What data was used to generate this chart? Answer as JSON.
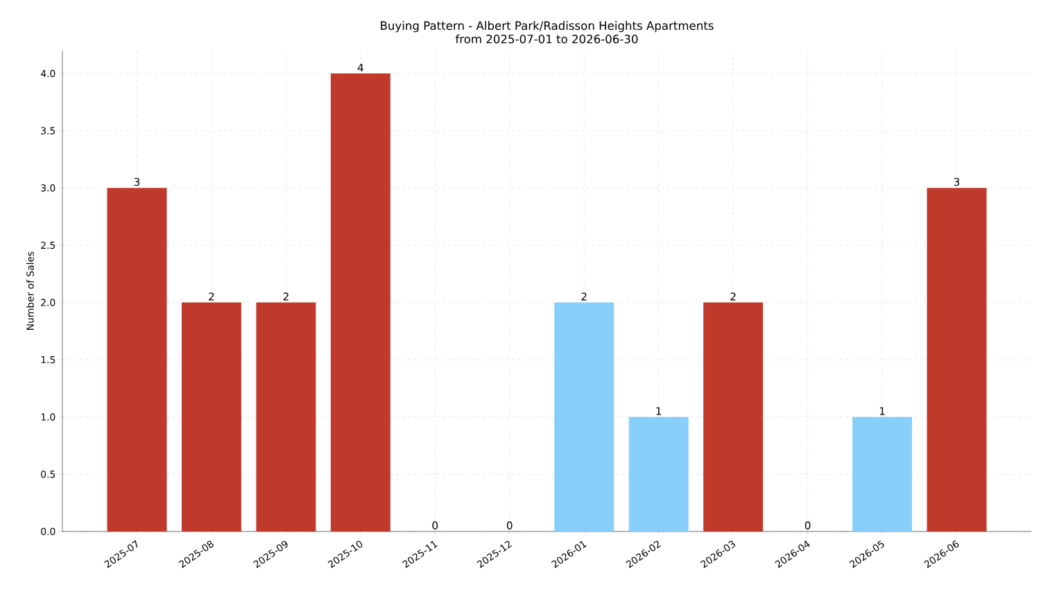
{
  "chart_data": {
    "type": "bar",
    "title": "Buying Pattern - Albert Park/Radisson Heights Apartments",
    "subtitle": "from 2025-07-01 to 2026-06-30",
    "ylabel": "Number of Sales",
    "categories": [
      "2025-07",
      "2025-08",
      "2025-09",
      "2025-10",
      "2025-11",
      "2025-12",
      "2026-01",
      "2026-02",
      "2026-03",
      "2026-04",
      "2026-05",
      "2026-06"
    ],
    "values": [
      3,
      2,
      2,
      4,
      0,
      0,
      2,
      1,
      2,
      0,
      1,
      3
    ],
    "colors": [
      "#c0392b",
      "#c0392b",
      "#c0392b",
      "#c0392b",
      "#c0392b",
      "#c0392b",
      "#87cefa",
      "#87cefa",
      "#c0392b",
      "#c0392b",
      "#87cefa",
      "#c0392b"
    ],
    "ylim": [
      0,
      4.2
    ],
    "yticks": [
      {
        "value": 0,
        "label": "0.0"
      },
      {
        "value": 0.5,
        "label": "0.5"
      },
      {
        "value": 1,
        "label": "1.0"
      },
      {
        "value": 1.5,
        "label": "1.5"
      },
      {
        "value": 2,
        "label": "2.0"
      },
      {
        "value": 2.5,
        "label": "2.5"
      },
      {
        "value": 3,
        "label": "3.0"
      },
      {
        "value": 3.5,
        "label": "3.5"
      },
      {
        "value": 4,
        "label": "4.0"
      }
    ],
    "grid": true,
    "data_labels": true
  }
}
